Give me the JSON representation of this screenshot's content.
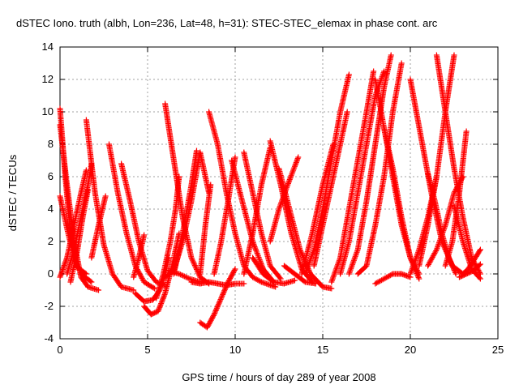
{
  "chart_data": {
    "type": "scatter",
    "title": "dSTEC Iono. truth (albh, Lon=236, Lat=48, h=31): STEC-STEC_elemax in phase cont. arc",
    "xlabel": "GPS time / hours of day 289 of year 2008",
    "ylabel": "dSTEC  / TECUs",
    "xlim": [
      0,
      25
    ],
    "ylim": [
      -4,
      14
    ],
    "xticks": [
      0,
      5,
      10,
      15,
      20,
      25
    ],
    "yticks": [
      -4,
      -2,
      0,
      2,
      4,
      6,
      8,
      10,
      12,
      14
    ],
    "grid": true,
    "marker": "plus",
    "color": "#ff0000",
    "series": [
      {
        "x": [
          0.0,
          0.3,
          0.6,
          1.0,
          1.5
        ],
        "y": [
          10.2,
          6.0,
          2.5,
          0.4,
          0.0
        ]
      },
      {
        "x": [
          0.0,
          0.4,
          0.8,
          1.2,
          1.6,
          2.2
        ],
        "y": [
          9.2,
          5.5,
          2.0,
          -0.2,
          -0.8,
          -1.0
        ]
      },
      {
        "x": [
          0.0,
          0.4,
          0.8,
          1.2,
          1.8
        ],
        "y": [
          4.8,
          2.8,
          1.0,
          0.0,
          -0.5
        ]
      },
      {
        "x": [
          0.0,
          0.4,
          0.8,
          1.2,
          1.5
        ],
        "y": [
          -0.2,
          1.0,
          3.0,
          5.0,
          6.4
        ]
      },
      {
        "x": [
          0.4,
          0.8,
          1.2,
          1.6,
          1.8
        ],
        "y": [
          0.0,
          1.5,
          3.5,
          5.5,
          6.8
        ]
      },
      {
        "x": [
          0.6,
          1.0,
          1.3,
          1.6
        ],
        "y": [
          -0.5,
          1.5,
          3.5,
          5.2
        ]
      },
      {
        "x": [
          1.5,
          2.0,
          2.5,
          3.0,
          3.5,
          4.2
        ],
        "y": [
          9.5,
          5.0,
          1.8,
          0.0,
          -0.8,
          -1.0
        ]
      },
      {
        "x": [
          1.8,
          2.2,
          2.6
        ],
        "y": [
          1.0,
          3.0,
          4.8
        ]
      },
      {
        "x": [
          2.8,
          3.3,
          3.8,
          4.3,
          4.8,
          5.4
        ],
        "y": [
          8.0,
          5.0,
          2.5,
          0.5,
          -0.5,
          -0.9
        ]
      },
      {
        "x": [
          4.2,
          4.5,
          4.8
        ],
        "y": [
          -0.2,
          1.0,
          2.4
        ]
      },
      {
        "x": [
          3.5,
          4.0,
          4.5,
          5.0,
          5.5,
          6.0
        ],
        "y": [
          6.8,
          4.5,
          2.0,
          0.2,
          -0.5,
          -0.7
        ]
      },
      {
        "x": [
          4.3,
          4.8,
          5.3,
          5.7,
          6.0,
          6.2
        ],
        "y": [
          -1.2,
          -1.7,
          -1.6,
          -1.0,
          0.0,
          1.0
        ]
      },
      {
        "x": [
          4.8,
          5.2,
          5.6,
          6.0,
          6.4,
          6.8
        ],
        "y": [
          -2.0,
          -2.5,
          -2.3,
          -1.2,
          0.5,
          2.5
        ]
      },
      {
        "x": [
          5.5,
          5.9,
          6.3,
          6.6,
          6.8
        ],
        "y": [
          -1.5,
          0.0,
          2.0,
          4.0,
          6.0
        ]
      },
      {
        "x": [
          6.0,
          6.5,
          7.0,
          7.5,
          8.0,
          8.5
        ],
        "y": [
          10.5,
          7.0,
          3.5,
          1.0,
          -0.2,
          -0.6
        ]
      },
      {
        "x": [
          6.0,
          6.5,
          7.0,
          7.5,
          8.0,
          8.5
        ],
        "y": [
          -0.2,
          0.2,
          2.0,
          4.5,
          7.5,
          5.0
        ]
      },
      {
        "x": [
          6.5,
          7.0,
          7.5,
          7.8
        ],
        "y": [
          0.0,
          2.5,
          5.5,
          7.6
        ]
      },
      {
        "x": [
          6.2,
          6.8,
          7.4,
          8.0
        ],
        "y": [
          0.2,
          0.0,
          -0.3,
          -0.5
        ]
      },
      {
        "x": [
          7.5,
          8.0,
          8.5,
          9.0,
          9.5,
          10.0,
          10.5
        ],
        "y": [
          -0.5,
          -0.6,
          -0.5,
          -0.6,
          -0.7,
          -0.6,
          -0.6
        ]
      },
      {
        "x": [
          8.0,
          8.4,
          8.8,
          9.2,
          9.6,
          10.0
        ],
        "y": [
          -3.0,
          -3.3,
          -2.5,
          -1.5,
          -0.5,
          0.3
        ]
      },
      {
        "x": [
          8.5,
          9.0,
          9.5,
          10.0,
          10.5,
          11.0,
          11.5,
          12.3
        ],
        "y": [
          10.0,
          8.0,
          5.0,
          2.5,
          0.5,
          -0.2,
          -0.5,
          -0.8
        ]
      },
      {
        "x": [
          8.8,
          9.2,
          9.6,
          10.0
        ],
        "y": [
          0.0,
          2.0,
          4.5,
          7.2
        ]
      },
      {
        "x": [
          8.0,
          8.3,
          8.6
        ],
        "y": [
          0.0,
          3.0,
          5.5
        ]
      },
      {
        "x": [
          9.8,
          10.4,
          11.0,
          11.6,
          12.2
        ],
        "y": [
          7.0,
          4.5,
          2.0,
          0.3,
          -0.5
        ]
      },
      {
        "x": [
          10.5,
          11.0,
          11.5,
          12.0,
          12.6
        ],
        "y": [
          7.5,
          5.0,
          2.5,
          0.5,
          -0.3
        ]
      },
      {
        "x": [
          10.5,
          11.0,
          11.5,
          12.0
        ],
        "y": [
          0.0,
          2.5,
          5.5,
          7.8
        ]
      },
      {
        "x": [
          11.0,
          11.6,
          12.2,
          12.8,
          13.4
        ],
        "y": [
          1.0,
          0.0,
          -0.5,
          -0.6,
          -0.4
        ]
      },
      {
        "x": [
          12.0,
          12.6,
          13.2,
          13.8,
          14.4
        ],
        "y": [
          8.2,
          5.5,
          2.5,
          0.3,
          -0.5
        ]
      },
      {
        "x": [
          12.0,
          12.5,
          13.0,
          13.6
        ],
        "y": [
          2.0,
          4.0,
          5.5,
          7.2
        ]
      },
      {
        "x": [
          12.5,
          13.1,
          13.7,
          14.3,
          15.0,
          15.5
        ],
        "y": [
          6.5,
          4.0,
          1.5,
          0.0,
          -0.8,
          -0.9
        ]
      },
      {
        "x": [
          12.8,
          13.4,
          14.0,
          14.6
        ],
        "y": [
          0.5,
          0.0,
          -0.5,
          -0.6
        ]
      },
      {
        "x": [
          14.0,
          14.5,
          15.0,
          15.5,
          16.0,
          16.5
        ],
        "y": [
          0.0,
          1.5,
          4.0,
          7.0,
          10.0,
          12.3
        ]
      },
      {
        "x": [
          13.8,
          14.4,
          15.0,
          15.6
        ],
        "y": [
          0.0,
          2.5,
          5.5,
          8.0
        ]
      },
      {
        "x": [
          14.5,
          15.0,
          15.5,
          16.0,
          16.4
        ],
        "y": [
          0.5,
          3.0,
          5.5,
          8.0,
          10.0
        ]
      },
      {
        "x": [
          15.5,
          16.0,
          16.5,
          17.0,
          17.5,
          17.9
        ],
        "y": [
          -0.5,
          1.0,
          4.0,
          7.0,
          10.0,
          12.5
        ]
      },
      {
        "x": [
          16.0,
          16.5,
          17.0,
          17.5,
          18.0,
          18.5
        ],
        "y": [
          0.0,
          2.0,
          5.0,
          8.0,
          11.0,
          12.5
        ]
      },
      {
        "x": [
          16.5,
          17.0,
          17.5,
          18.0,
          18.5,
          18.9
        ],
        "y": [
          0.0,
          1.5,
          4.5,
          8.0,
          11.5,
          13.5
        ]
      },
      {
        "x": [
          17.0,
          17.5,
          18.0,
          18.5,
          19.0,
          19.5
        ],
        "y": [
          0.0,
          0.5,
          3.0,
          6.0,
          10.0,
          13.0
        ]
      },
      {
        "x": [
          18.0,
          18.5,
          19.0,
          19.5,
          20.0,
          20.5
        ],
        "y": [
          12.0,
          9.0,
          6.0,
          3.0,
          1.0,
          0.0
        ]
      },
      {
        "x": [
          18.5,
          19.0,
          19.5,
          20.0,
          20.5
        ],
        "y": [
          9.0,
          6.5,
          3.5,
          1.0,
          -0.3
        ]
      },
      {
        "x": [
          18.0,
          18.5,
          19.0,
          19.5,
          20.0
        ],
        "y": [
          -0.6,
          -0.3,
          0.0,
          0.0,
          -0.2
        ]
      },
      {
        "x": [
          20.0,
          20.5,
          21.0,
          21.5
        ],
        "y": [
          0.0,
          1.5,
          3.5,
          6.0
        ]
      },
      {
        "x": [
          20.0,
          20.6,
          21.2,
          21.8,
          22.4,
          23.0
        ],
        "y": [
          12.0,
          8.5,
          5.0,
          2.0,
          0.5,
          0.0
        ]
      },
      {
        "x": [
          20.5,
          21.0,
          21.5,
          22.0,
          22.5
        ],
        "y": [
          0.5,
          3.0,
          6.0,
          10.0,
          13.5
        ]
      },
      {
        "x": [
          21.5,
          22.0,
          22.5,
          23.0,
          23.5,
          24.0
        ],
        "y": [
          13.5,
          10.0,
          6.5,
          3.5,
          1.0,
          0.0
        ]
      },
      {
        "x": [
          21.0,
          21.5,
          22.0,
          22.5,
          23.0
        ],
        "y": [
          0.5,
          1.5,
          3.0,
          5.0,
          6.0
        ]
      },
      {
        "x": [
          21.0,
          21.4,
          21.8,
          22.2,
          22.6
        ],
        "y": [
          6.2,
          4.5,
          2.5,
          1.0,
          0.0
        ]
      },
      {
        "x": [
          22.0,
          22.4,
          22.8,
          23.2
        ],
        "y": [
          0.5,
          2.0,
          5.0,
          8.8
        ]
      },
      {
        "x": [
          22.5,
          23.0,
          23.5,
          24.0
        ],
        "y": [
          4.2,
          2.0,
          0.3,
          -0.3
        ]
      },
      {
        "x": [
          23.0,
          23.3,
          23.6,
          24.0
        ],
        "y": [
          0.0,
          0.3,
          0.8,
          1.5
        ]
      },
      {
        "x": [
          22.8,
          23.2,
          23.6,
          24.0
        ],
        "y": [
          -0.2,
          0.0,
          0.2,
          0.6
        ]
      }
    ]
  }
}
